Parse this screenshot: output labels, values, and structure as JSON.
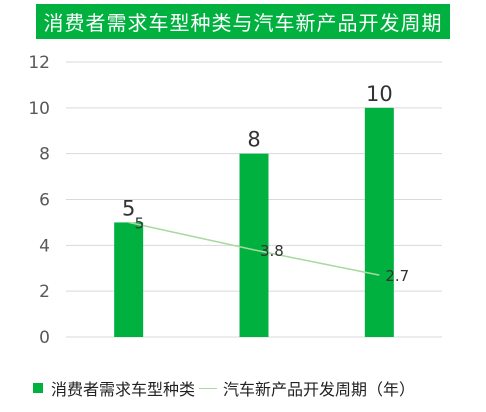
{
  "chart_data": {
    "type": "bar",
    "title": "消费者需求车型种类与汽车新产品开发周期",
    "categories": [
      "",
      "",
      ""
    ],
    "ylim": [
      0,
      12
    ],
    "yticks": [
      0,
      2,
      4,
      6,
      8,
      10,
      12
    ],
    "grid": true,
    "legend_position": "bottom",
    "colors": {
      "bar": "#00b140",
      "line": "#a8d9a0"
    },
    "series": [
      {
        "name": "消费者需求车型种类",
        "type": "bar",
        "values": [
          5,
          8,
          10
        ]
      },
      {
        "name": "汽车新产品开发周期（年）",
        "type": "line",
        "values": [
          5,
          3.8,
          2.7
        ]
      }
    ]
  }
}
